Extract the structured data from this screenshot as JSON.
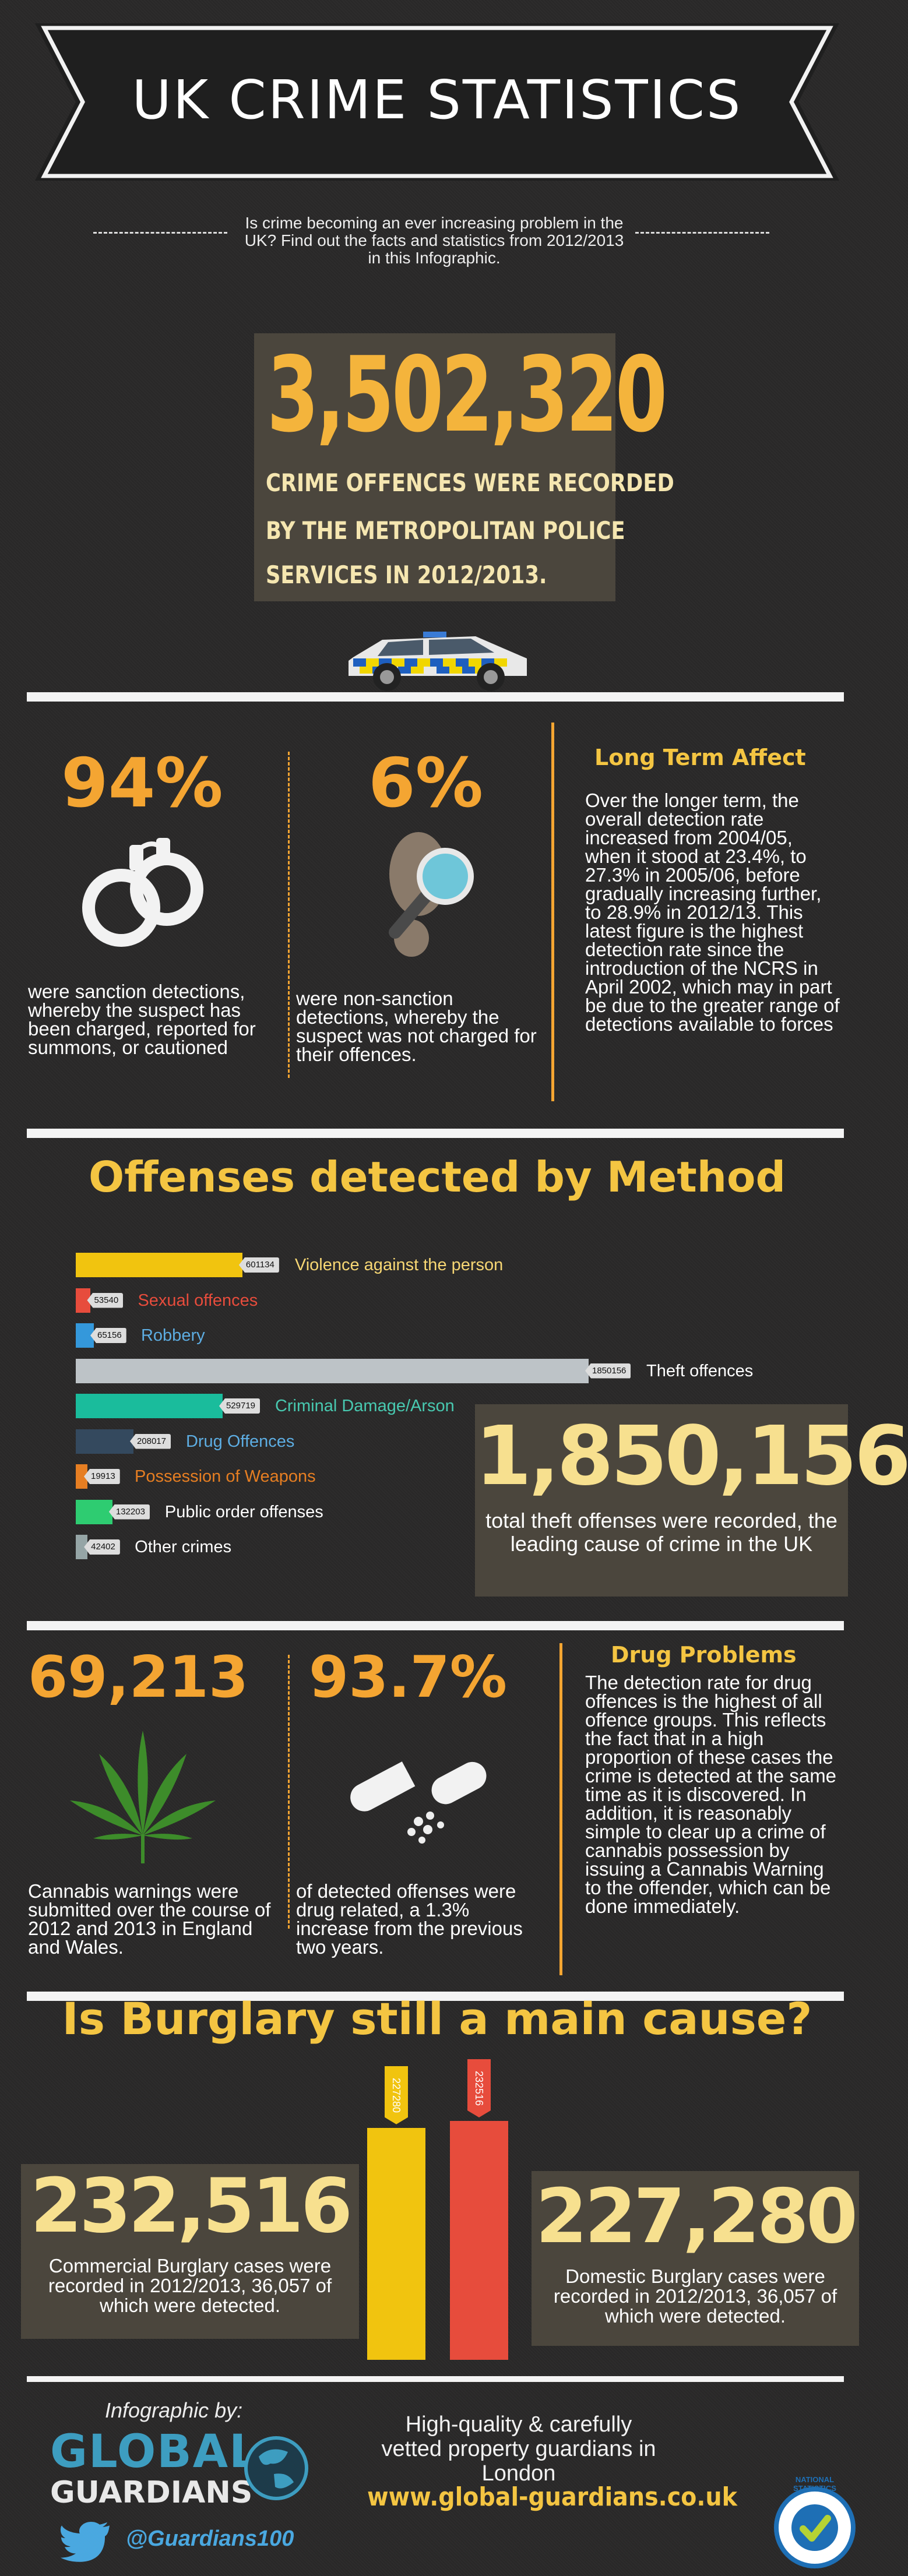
{
  "header": {
    "title": "UK CRIME STATISTICS",
    "intro": "Is crime becoming an ever increasing problem in the UK? Find out the facts and statistics from 2012/2013 in this Infographic."
  },
  "hero": {
    "number": "3,502,320",
    "caption_lines": [
      "CRIME OFFENCES WERE RECORDED",
      "BY THE METROPOLITAN POLICE",
      "SERVICES IN 2012/2013."
    ]
  },
  "detection": {
    "sanction_pct": "94%",
    "sanction_text": "were sanction detections, whereby the suspect has been charged, reported for summons, or cautioned",
    "nonsanction_pct": "6%",
    "nonsanction_text": "were non-sanction detections, whereby the suspect was not charged for their offences.",
    "long_term_title": "Long Term Affect",
    "long_term_text": "Over the longer term, the overall detection rate increased from 2004/05, when it stood at 23.4%, to 27.3% in 2005/06, before gradually increasing further, to 28.9% in 2012/13. This latest figure is the highest detection rate since the introduction of the NCRS in April 2002, which may in part be due to the greater range of detections available to forces"
  },
  "methods": {
    "title": "Offenses detected by Method",
    "theft_number": "1,850,156",
    "theft_text": "total theft offenses were recorded, the leading cause of crime in the UK"
  },
  "chart_data": {
    "type": "bar",
    "orientation": "horizontal",
    "categories": [
      "Violence against the person",
      "Sexual offences",
      "Robbery",
      "Theft offences",
      "Criminal Damage/Arson",
      "Drug Offences",
      "Possession of Weapons",
      "Public order offenses",
      "Other crimes"
    ],
    "values": [
      601134,
      53540,
      65156,
      1850156,
      529719,
      208017,
      19913,
      132203,
      42402
    ],
    "value_labels": [
      "601134",
      "53540",
      "65156",
      "1850156",
      "529719",
      "208017",
      "19913",
      "132203",
      "42402"
    ],
    "colors": [
      "#f1c40f",
      "#e74c3c",
      "#3498db",
      "#bdc3c7",
      "#1abc9c",
      "#34495e",
      "#e67e22",
      "#2ecc71",
      "#95a5a6"
    ],
    "label_colors": [
      "#f7d774",
      "#e74c3c",
      "#5dade2",
      "#ffffff",
      "#48c9b0",
      "#5dade2",
      "#e67e22",
      "#ffffff",
      "#ffffff"
    ],
    "xlim": [
      0,
      1850156
    ]
  },
  "drugs": {
    "cannabis_number": "69,213",
    "cannabis_text": "Cannabis warnings were submitted over the course of 2012 and 2013 in England and Wales.",
    "drug_pct": "93.7%",
    "drug_pct_text": "of detected offenses were drug related, a 1.3% increase from the previous two years.",
    "problems_title": "Drug Problems",
    "problems_text": "The detection rate for drug offences is the highest of all offence groups. This reflects the fact that in a high proportion of these cases the crime is detected at the same time as it is discovered. In addition, it is reasonably simple to clear up a crime of cannabis possession by issuing a Cannabis Warning to the offender, which can be done immediately."
  },
  "burglary": {
    "title": "Is Burglary still a main cause?",
    "commercial_number": "232,516",
    "commercial_text": "Commercial Burglary cases were recorded in 2012/2013, 36,057 of which were detected.",
    "domestic_number": "227,280",
    "domestic_text": "Domestic Burglary cases were recorded in 2012/2013, 36,057 of which were detected.",
    "bar_labels": [
      "227280",
      "232516"
    ],
    "bar_values": [
      227280,
      232516
    ],
    "bar_colors": [
      "#f1c40f",
      "#e74c3c"
    ]
  },
  "footer": {
    "credit": "Infographic by:",
    "logo_line1": "GLOBAL",
    "logo_line2": "GUARDIANS",
    "twitter": "@Guardians100",
    "tagline": "High-quality & carefully vetted property guardians in London",
    "url": "www.global-guardians.co.uk",
    "badge_text": "NATIONAL STATISTICS"
  }
}
